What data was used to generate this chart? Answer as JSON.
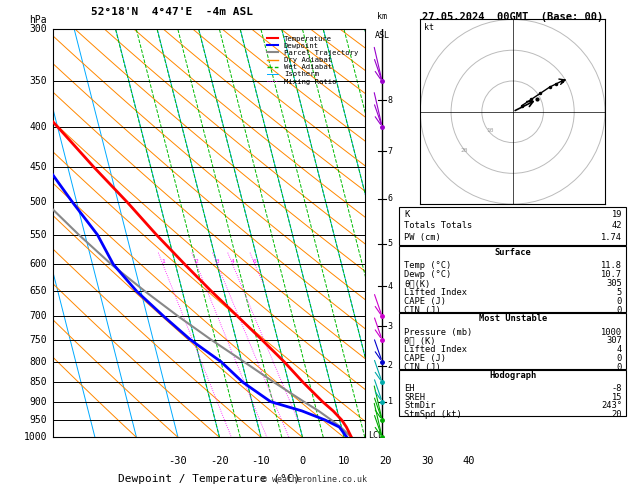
{
  "title_left": "52°18'N  4°47'E  -4m ASL",
  "title_right": "27.05.2024  00GMT  (Base: 00)",
  "xlabel": "Dewpoint / Temperature (°C)",
  "p_levels": [
    300,
    350,
    400,
    450,
    500,
    550,
    600,
    650,
    700,
    750,
    800,
    850,
    900,
    950,
    1000
  ],
  "p_min": 300,
  "p_max": 1000,
  "t_min": -35,
  "t_max": 40,
  "temp_profile": {
    "pressure": [
      1000,
      970,
      950,
      925,
      900,
      850,
      800,
      750,
      700,
      650,
      600,
      550,
      500,
      450,
      400,
      350,
      300
    ],
    "temp": [
      11.8,
      11.2,
      10.5,
      9.0,
      7.0,
      3.5,
      0.2,
      -3.8,
      -8.2,
      -13.0,
      -17.8,
      -22.8,
      -27.8,
      -33.8,
      -40.0,
      -47.5,
      -54.0
    ]
  },
  "dewp_profile": {
    "pressure": [
      1000,
      970,
      950,
      925,
      900,
      850,
      800,
      750,
      700,
      650,
      600,
      550,
      500,
      450,
      400,
      350,
      300
    ],
    "dewp": [
      10.7,
      9.5,
      6.5,
      1.5,
      -5.5,
      -11.0,
      -15.0,
      -21.0,
      -26.0,
      -31.0,
      -35.0,
      -37.0,
      -41.0,
      -45.0,
      -50.0,
      -56.0,
      -62.0
    ]
  },
  "parcel_profile": {
    "pressure": [
      1000,
      970,
      950,
      925,
      900,
      850,
      800,
      750,
      700,
      650,
      600,
      550,
      500,
      450,
      400,
      350,
      300
    ],
    "temp": [
      11.8,
      9.8,
      8.0,
      5.5,
      2.5,
      -3.5,
      -9.5,
      -16.0,
      -22.5,
      -29.0,
      -35.5,
      -41.5,
      -47.5,
      -53.5,
      -59.5,
      -65.5,
      -71.5
    ]
  },
  "isotherm_color": "#00aaff",
  "dry_adiabat_color": "#ff8800",
  "wet_adiabat_color": "#00bb00",
  "mixing_ratio_color": "#ff00ff",
  "temp_color": "#ff0000",
  "dewp_color": "#0000ff",
  "parcel_color": "#888888",
  "mixing_ratios": [
    1,
    2,
    3,
    4,
    6,
    8,
    10,
    16,
    20,
    25
  ],
  "km_ticks": [
    1,
    2,
    3,
    4,
    5,
    6,
    7,
    8
  ],
  "km_pressures": [
    900,
    810,
    720,
    640,
    565,
    495,
    430,
    370
  ],
  "surface_data": {
    "K": 19,
    "TotTot": 42,
    "PW": 1.74,
    "Temp": 11.8,
    "Dewp": 10.7,
    "theta_e": 305,
    "LI": 5,
    "CAPE": 0,
    "CIN": 0
  },
  "unstable_data": {
    "Pressure": 1000,
    "theta_e": 307,
    "LI": 4,
    "CAPE": 0,
    "CIN": 0
  },
  "hodograph_data": {
    "EH": -8,
    "SREH": 15,
    "StmDir": 243,
    "StmSpd": 20
  },
  "lcl_pressure": 993,
  "skew_factor": 25
}
